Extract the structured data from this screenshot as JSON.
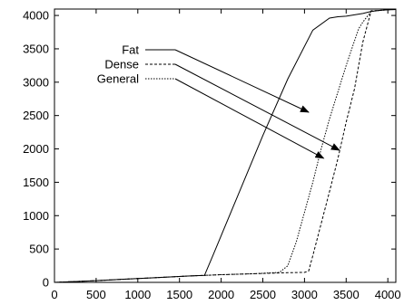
{
  "chart_data": {
    "type": "line",
    "title": "",
    "xlabel": "",
    "ylabel": "",
    "xlim": [
      0,
      4096
    ],
    "ylim": [
      0,
      4096
    ],
    "xticks": [
      0,
      500,
      1000,
      1500,
      2000,
      2500,
      3000,
      3500,
      4000
    ],
    "yticks": [
      0,
      500,
      1000,
      1500,
      2000,
      2500,
      3000,
      3500,
      4000
    ],
    "grid": false,
    "legend": "upper-left",
    "series": [
      {
        "name": "Fat",
        "dash": "solid",
        "x": [
          0,
          400,
          800,
          1200,
          1600,
          1800,
          1900,
          2000,
          2200,
          2500,
          2800,
          3100,
          3300,
          3400,
          3500,
          3600,
          3700,
          3800,
          3900,
          4000,
          4096
        ],
        "y": [
          0,
          20,
          45,
          70,
          95,
          105,
          400,
          700,
          1300,
          2200,
          3050,
          3780,
          3960,
          3980,
          3990,
          4010,
          4030,
          4060,
          4075,
          4085,
          4090
        ]
      },
      {
        "name": "Dense",
        "dash": "dashed",
        "x": [
          0,
          400,
          800,
          1200,
          1600,
          2000,
          2400,
          2800,
          3000,
          3050,
          3100,
          3200,
          3300,
          3400,
          3500,
          3600,
          3650,
          3700,
          3800,
          3900,
          4000,
          4096
        ],
        "y": [
          0,
          20,
          45,
          70,
          95,
          115,
          130,
          145,
          150,
          170,
          400,
          880,
          1360,
          1850,
          2400,
          2900,
          3250,
          3600,
          4070,
          4075,
          4085,
          4090
        ]
      },
      {
        "name": "General",
        "dash": "dotted",
        "x": [
          0,
          400,
          800,
          1200,
          1600,
          2000,
          2400,
          2700,
          2800,
          2900,
          3000,
          3100,
          3200,
          3300,
          3400,
          3500,
          3600,
          3650,
          3700,
          3800,
          3900,
          4000,
          4096
        ],
        "y": [
          0,
          20,
          45,
          70,
          95,
          115,
          130,
          150,
          250,
          600,
          1050,
          1500,
          2000,
          2450,
          2850,
          3250,
          3620,
          3800,
          3900,
          4060,
          4075,
          4085,
          4090
        ]
      }
    ],
    "annotations": [
      {
        "type": "arrow",
        "from_series": "Fat",
        "to": [
          3050,
          2550
        ]
      },
      {
        "type": "arrow",
        "from_series": "Dense",
        "to": [
          3420,
          1980
        ]
      },
      {
        "type": "arrow",
        "from_series": "General",
        "to": [
          3230,
          1860
        ]
      }
    ]
  }
}
